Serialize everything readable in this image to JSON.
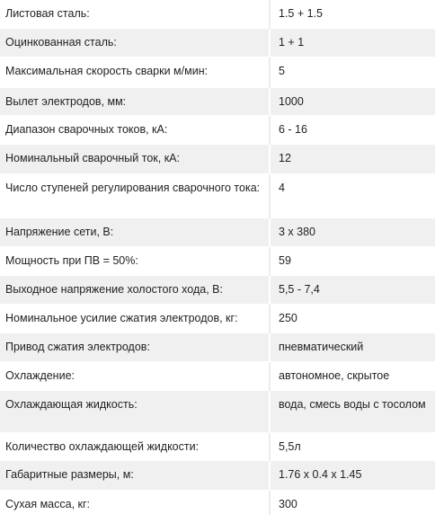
{
  "specs": [
    {
      "label": "Листовая сталь:",
      "value": "1.5 + 1.5"
    },
    {
      "label": "Оцинкованная  сталь:",
      "value": "1 + 1"
    },
    {
      "label": "Максимальная  скорость сварки м/мин:",
      "value": "5"
    },
    {
      "label": "Вылет электродов, мм:",
      "value": "1000"
    },
    {
      "label": "Диапазон сварочных токов, кА:",
      "value": "6 - 16"
    },
    {
      "label": "Номинальный  сварочный ток, кА:",
      "value": "12"
    },
    {
      "label": "Число ступеней регулирования сварочного тока:",
      "value": "4"
    },
    {
      "label": "Напряжение сети, В:",
      "value": "3 x 380"
    },
    {
      "label": "Мощность при ПВ = 50%:",
      "value": "59"
    },
    {
      "label": "Выходное напряжение  холостого хода, В:",
      "value": "5,5 - 7,4"
    },
    {
      "label": "Номинальное усилие сжатия электродов, кг:",
      "value": "250"
    },
    {
      "label": "Привод сжатия электродов:",
      "value": "пневматический"
    },
    {
      "label": "Охлаждение:",
      "value": "автономное, скрытое"
    },
    {
      "label": "Охлаждающая жидкость:",
      "value": "вода, смесь воды с тосолом"
    },
    {
      "label": "Количество охлаждающей жидкости:",
      "value": "5,5л"
    },
    {
      "label": "Габаритные  размеры, м:",
      "value": "1.76 x 0.4 x 1.45"
    },
    {
      "label": "Сухая масса,  кг:",
      "value": "300"
    }
  ]
}
